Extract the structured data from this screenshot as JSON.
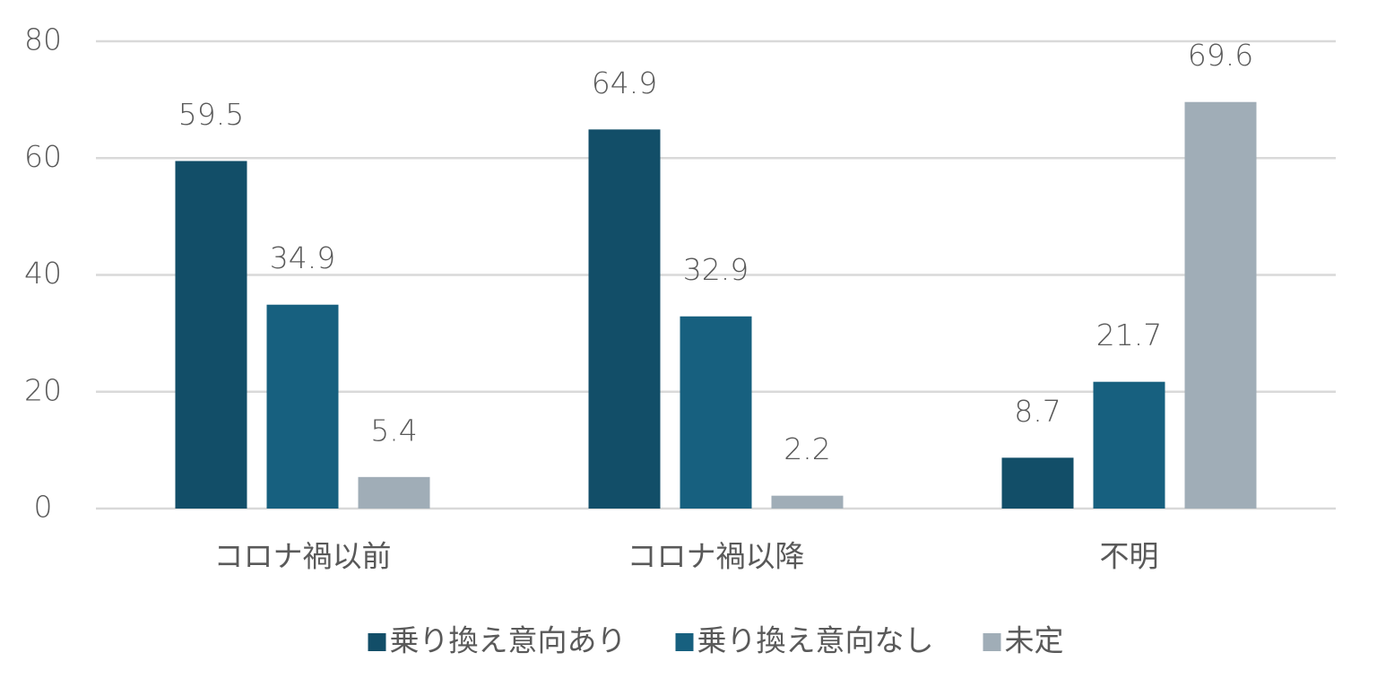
{
  "chart_data": {
    "type": "bar",
    "categories": [
      "コロナ禍以前",
      "コロナ禍以降",
      "不明"
    ],
    "series": [
      {
        "name": "乗り換え意向あり",
        "color": "#124e68",
        "values": [
          59.5,
          64.9,
          8.7
        ]
      },
      {
        "name": "乗り換え意向なし",
        "color": "#17607f",
        "values": [
          34.9,
          32.9,
          21.7
        ]
      },
      {
        "name": "未定",
        "color": "#a0adb7",
        "values": [
          5.4,
          2.2,
          69.6
        ]
      }
    ],
    "ylim": [
      0,
      80
    ],
    "yticks": [
      0,
      20,
      40,
      60,
      80
    ],
    "grid": true,
    "legend": "bottom"
  }
}
